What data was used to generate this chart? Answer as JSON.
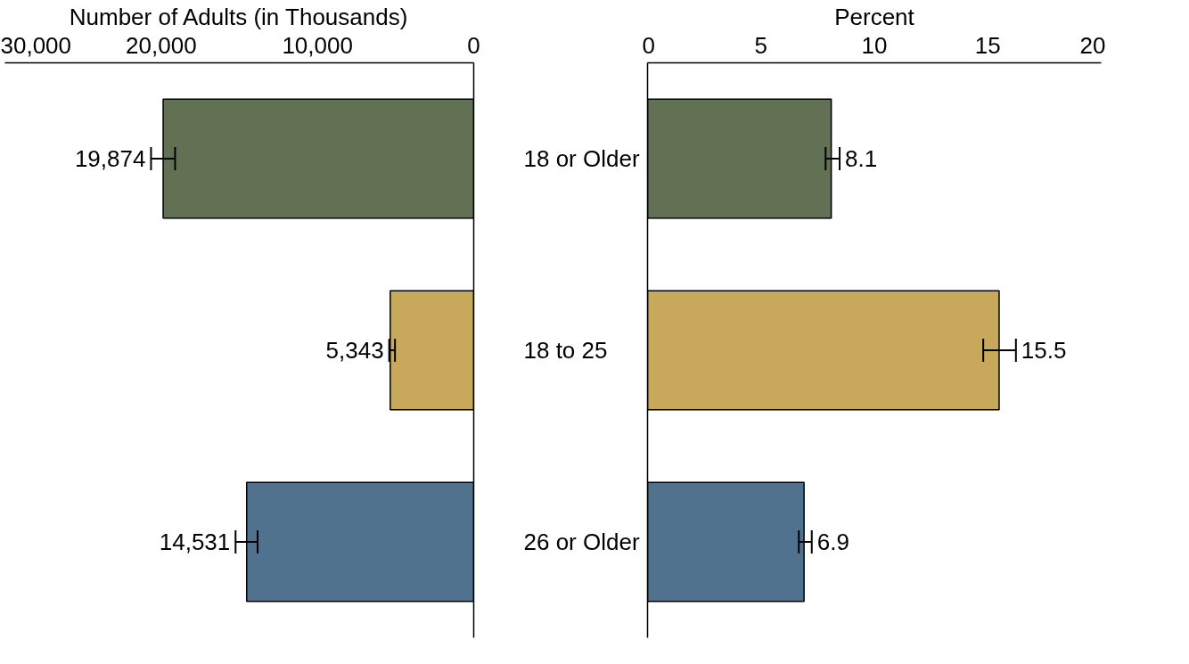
{
  "chart_data": [
    {
      "type": "bar",
      "orientation": "horizontal",
      "xlabel": "Number of Adults (in Thousands)",
      "categories": [
        "18 or Older",
        "18 to 25",
        "26 or Older"
      ],
      "values": [
        19874,
        5343,
        14531
      ],
      "colors": [
        "#627054",
        "#c8a95b",
        "#50728e"
      ],
      "errors": [
        [
          19110,
          20650
        ],
        [
          5040,
          5410
        ],
        [
          13830,
          15240
        ]
      ],
      "value_labels": [
        "19,874",
        "5,343",
        "14,531"
      ],
      "xlim": [
        30000,
        0
      ],
      "xticks": [
        {
          "value": 30000,
          "label": "30,000"
        },
        {
          "value": 20000,
          "label": "20,000"
        },
        {
          "value": 10000,
          "label": "10,000"
        },
        0
      ],
      "grid": false
    },
    {
      "type": "bar",
      "orientation": "horizontal",
      "xlabel": "Percent",
      "values": [
        8.1,
        15.5,
        6.9
      ],
      "colors": [
        "#627054",
        "#c8a95b",
        "#50728e"
      ],
      "errors": [
        [
          7.85,
          8.47
        ],
        [
          14.8,
          16.24
        ],
        [
          6.67,
          7.24
        ]
      ],
      "value_labels": [
        "8.1",
        "15.5",
        "6.9"
      ],
      "xlim": [
        0,
        20
      ],
      "xticks": [
        0,
        5,
        10,
        15,
        20
      ],
      "grid": false
    }
  ]
}
